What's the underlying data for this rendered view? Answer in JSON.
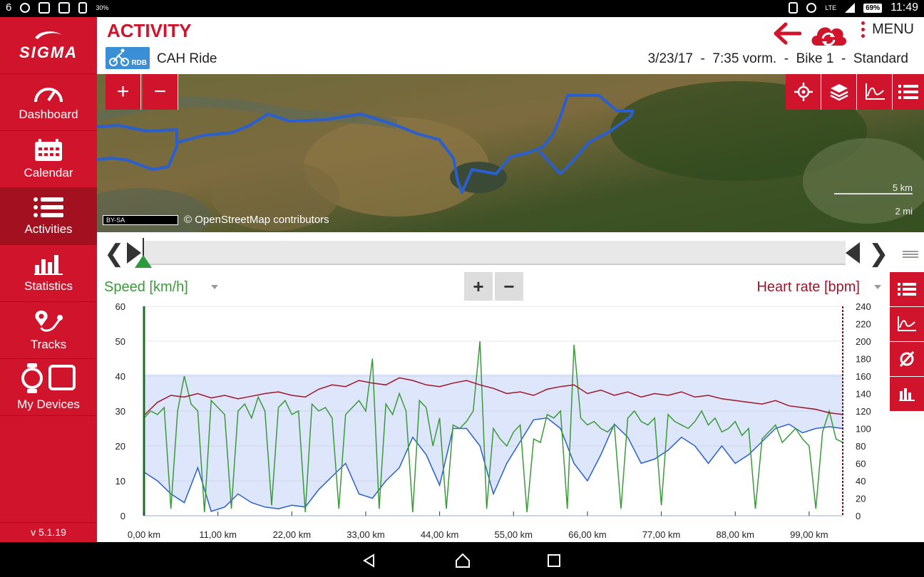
{
  "status_bar": {
    "left_number": "6",
    "left_small": "30%",
    "lte": "LTE",
    "battery": "69%",
    "time": "11:49"
  },
  "sidebar": {
    "brand": "SIGMA",
    "items": [
      {
        "label": "Dashboard",
        "icon": "speedometer-icon"
      },
      {
        "label": "Calendar",
        "icon": "calendar-icon"
      },
      {
        "label": "Activities",
        "icon": "list-icon",
        "active": true
      },
      {
        "label": "Statistics",
        "icon": "bar-chart-icon"
      },
      {
        "label": "Tracks",
        "icon": "route-pin-icon"
      },
      {
        "label": "My Devices",
        "icon": "devices-icon"
      }
    ],
    "version": "v 5.1.19"
  },
  "header": {
    "title": "ACTIVITY",
    "sport_badge": "RDB",
    "ride_name": "CAH Ride",
    "meta": "3/23/17  -  7:35 vorm.  -  Bike 1  -  Standard",
    "menu_label": "MENU"
  },
  "map": {
    "zoom_in": "+",
    "zoom_out": "−",
    "cc_label": "BY-SA",
    "attribution": "© OpenStreetMap contributors",
    "scale_km": "5 km",
    "scale_mi": "2 mi",
    "route_color": "#2a5fcf"
  },
  "chart_header": {
    "left_label": "Speed [km/h]",
    "right_label": "Heart rate [bpm]",
    "zoom_in": "+",
    "zoom_out": "−"
  },
  "colors": {
    "brand_red": "#d0142c",
    "speed_green": "#3a9a3a",
    "hr_red": "#a0142a",
    "altitude_blue": "#2a5fcf"
  },
  "chart_data": {
    "type": "line",
    "title": "",
    "xlabel": "",
    "x_ticks": [
      "0,00 km",
      "11,00 km",
      "22,00 km",
      "33,00 km",
      "44,00 km",
      "55,00 km",
      "66,00 km",
      "77,00 km",
      "88,00 km",
      "99,00 km"
    ],
    "x_tick_values": [
      0,
      11,
      22,
      33,
      44,
      55,
      66,
      77,
      88,
      99
    ],
    "xlim": [
      0,
      104
    ],
    "y_left": {
      "label": "Speed [km/h]",
      "ylim": [
        0,
        60
      ],
      "ticks": [
        0,
        10,
        20,
        30,
        40,
        50,
        60
      ]
    },
    "y_right": {
      "label": "Heart rate [bpm]",
      "ylim": [
        0,
        240
      ],
      "ticks": [
        0,
        20,
        40,
        60,
        80,
        100,
        120,
        140,
        160,
        180,
        200,
        220,
        240
      ]
    },
    "grid": true,
    "series": [
      {
        "name": "Speed [km/h]",
        "axis": "left",
        "kind": "line",
        "x": [
          0,
          1,
          2,
          3,
          4,
          5,
          6,
          7,
          8,
          9,
          10,
          11,
          12,
          13,
          14,
          15,
          16,
          17,
          18,
          19,
          20,
          21,
          22,
          23,
          24,
          25,
          26,
          27,
          28,
          29,
          30,
          31,
          32,
          33,
          34,
          35,
          36,
          37,
          38,
          39,
          40,
          41,
          42,
          43,
          44,
          45,
          46,
          47,
          48,
          49,
          50,
          51,
          52,
          53,
          54,
          55,
          56,
          57,
          58,
          59,
          60,
          61,
          62,
          63,
          64,
          65,
          66,
          67,
          68,
          69,
          70,
          71,
          72,
          73,
          74,
          75,
          76,
          77,
          78,
          79,
          80,
          81,
          82,
          83,
          84,
          85,
          86,
          87,
          88,
          89,
          90,
          91,
          92,
          93,
          94,
          95,
          96,
          97,
          98,
          99,
          100,
          101,
          102,
          103,
          104
        ],
        "y": [
          28,
          30,
          29,
          31,
          2,
          30,
          40,
          32,
          30,
          1,
          33,
          31,
          29,
          2,
          30,
          32,
          28,
          34,
          30,
          3,
          31,
          33,
          29,
          30,
          1,
          32,
          30,
          31,
          28,
          2,
          29,
          31,
          33,
          30,
          45,
          2,
          32,
          29,
          35,
          30,
          1,
          33,
          31,
          20,
          28,
          2,
          26,
          25,
          27,
          30,
          50,
          2,
          25,
          22,
          20,
          24,
          26,
          1,
          22,
          21,
          29,
          28,
          30,
          2,
          49,
          28,
          26,
          27,
          25,
          24,
          26,
          2,
          28,
          30,
          27,
          26,
          28,
          3,
          29,
          27,
          26,
          25,
          27,
          30,
          26,
          28,
          24,
          25,
          27,
          23,
          25,
          2,
          22,
          24,
          26,
          21,
          23,
          25,
          22,
          20,
          2,
          24,
          30,
          22,
          21
        ]
      },
      {
        "name": "Heart rate [bpm]",
        "axis": "right",
        "kind": "line",
        "x": [
          0,
          2,
          4,
          6,
          8,
          10,
          12,
          14,
          16,
          18,
          20,
          22,
          24,
          26,
          28,
          30,
          32,
          34,
          36,
          38,
          40,
          42,
          44,
          46,
          48,
          50,
          52,
          54,
          56,
          58,
          60,
          62,
          64,
          66,
          68,
          70,
          72,
          74,
          76,
          78,
          80,
          82,
          84,
          86,
          88,
          90,
          92,
          94,
          96,
          98,
          100,
          102,
          104
        ],
        "y": [
          115,
          130,
          138,
          136,
          140,
          135,
          138,
          134,
          137,
          140,
          142,
          138,
          136,
          145,
          150,
          148,
          155,
          152,
          150,
          158,
          155,
          150,
          148,
          152,
          155,
          150,
          146,
          140,
          142,
          138,
          145,
          148,
          150,
          140,
          144,
          138,
          142,
          136,
          140,
          138,
          142,
          136,
          138,
          134,
          132,
          130,
          128,
          132,
          126,
          124,
          122,
          118,
          116
        ]
      },
      {
        "name": "Altitude",
        "axis": "right",
        "kind": "area",
        "x": [
          0,
          2,
          4,
          6,
          8,
          10,
          12,
          14,
          16,
          18,
          20,
          22,
          24,
          26,
          28,
          30,
          32,
          34,
          36,
          38,
          40,
          42,
          44,
          46,
          48,
          50,
          52,
          54,
          56,
          58,
          60,
          62,
          64,
          66,
          68,
          70,
          72,
          74,
          76,
          78,
          80,
          82,
          84,
          86,
          88,
          90,
          92,
          94,
          96,
          98,
          100,
          102,
          104
        ],
        "y": [
          50,
          40,
          25,
          15,
          55,
          5,
          10,
          25,
          15,
          10,
          8,
          12,
          10,
          30,
          45,
          60,
          25,
          20,
          40,
          55,
          90,
          70,
          35,
          100,
          100,
          80,
          25,
          60,
          85,
          110,
          112,
          100,
          60,
          40,
          70,
          105,
          90,
          60,
          65,
          75,
          90,
          80,
          60,
          80,
          60,
          70,
          85,
          100,
          105,
          95,
          100,
          102,
          100
        ]
      }
    ],
    "band": {
      "axis": "right",
      "from": 0,
      "to": 162
    }
  }
}
